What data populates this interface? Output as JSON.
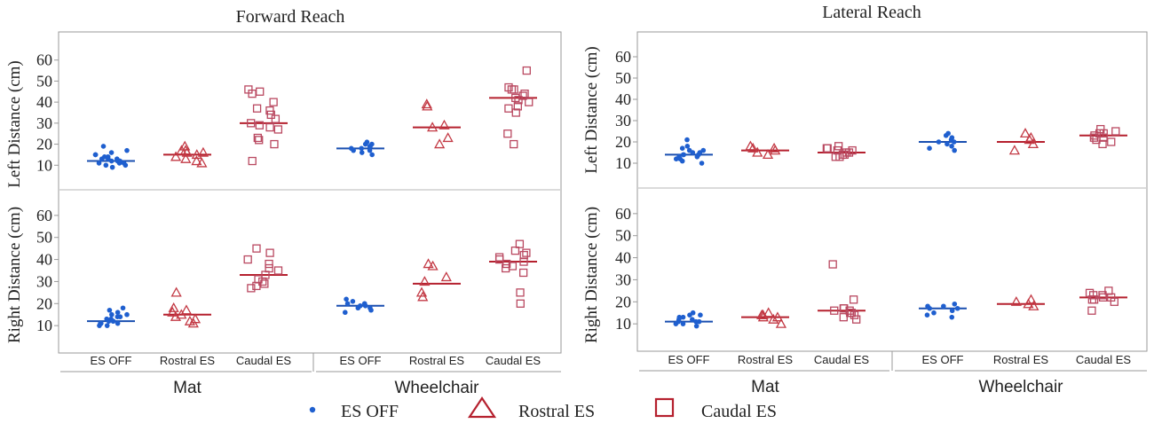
{
  "legend": {
    "items": [
      {
        "label": "ES OFF",
        "marker": "dot",
        "color": "#1f5fcf"
      },
      {
        "label": "Rostral ES",
        "marker": "triangle",
        "color": "#b5202e"
      },
      {
        "label": "Caudal ES",
        "marker": "square",
        "color": "#b5202e"
      }
    ]
  },
  "colors": {
    "es_off": "#1f5fcf",
    "rostral": "#c33a45",
    "caudal": "#b94860",
    "axis": "#9a9a9a",
    "text": "#222222"
  },
  "chart_data": [
    {
      "type": "scatter",
      "title": "Forward Reach",
      "groups": [
        "Mat",
        "Wheelchair"
      ],
      "conditions": [
        "ES OFF",
        "Rostral ES",
        "Caudal ES"
      ],
      "condition_markers": [
        "dot",
        "triangle",
        "square"
      ],
      "ylim": [
        0,
        70
      ],
      "yticks": [
        10,
        20,
        30,
        40,
        50,
        60
      ],
      "panels": [
        {
          "ylabel": "Left Distance (cm)",
          "series": [
            {
              "group": "Mat",
              "condition": "ES OFF",
              "mean": 12,
              "values": [
                9,
                10,
                10,
                11,
                11,
                11,
                12,
                12,
                12,
                12,
                13,
                13,
                13,
                14,
                14,
                15,
                15,
                16,
                17,
                19
              ]
            },
            {
              "group": "Mat",
              "condition": "Rostral ES",
              "mean": 15,
              "values": [
                11,
                12,
                13,
                14,
                15,
                16,
                16,
                17,
                17,
                19
              ]
            },
            {
              "group": "Mat",
              "condition": "Caudal ES",
              "mean": 30,
              "values": [
                12,
                20,
                22,
                23,
                27,
                28,
                29,
                30,
                32,
                34,
                36,
                37,
                40,
                44,
                45,
                46
              ]
            },
            {
              "group": "Wheelchair",
              "condition": "ES OFF",
              "mean": 18,
              "values": [
                15,
                16,
                17,
                17,
                18,
                18,
                19,
                19,
                20,
                20,
                21
              ]
            },
            {
              "group": "Wheelchair",
              "condition": "Rostral ES",
              "mean": 28,
              "values": [
                20,
                23,
                28,
                29,
                38,
                39
              ]
            },
            {
              "group": "Wheelchair",
              "condition": "Caudal ES",
              "mean": 42,
              "values": [
                20,
                25,
                35,
                37,
                38,
                40,
                41,
                42,
                43,
                44,
                46,
                46,
                47,
                55
              ]
            }
          ]
        },
        {
          "ylabel": "Right Distance (cm)",
          "series": [
            {
              "group": "Mat",
              "condition": "ES OFF",
              "mean": 12,
              "values": [
                10,
                10,
                11,
                11,
                11,
                12,
                12,
                12,
                13,
                13,
                14,
                14,
                15,
                15,
                16,
                17,
                18
              ]
            },
            {
              "group": "Mat",
              "condition": "Rostral ES",
              "mean": 15,
              "values": [
                11,
                12,
                13,
                14,
                15,
                16,
                17,
                18,
                25
              ]
            },
            {
              "group": "Mat",
              "condition": "Caudal ES",
              "mean": 33,
              "values": [
                27,
                28,
                29,
                30,
                31,
                33,
                35,
                36,
                38,
                40,
                43,
                45
              ]
            },
            {
              "group": "Wheelchair",
              "condition": "ES OFF",
              "mean": 19,
              "values": [
                16,
                17,
                18,
                18,
                19,
                19,
                20,
                20,
                21,
                22
              ]
            },
            {
              "group": "Wheelchair",
              "condition": "Rostral ES",
              "mean": 29,
              "values": [
                23,
                25,
                30,
                32,
                37,
                38
              ]
            },
            {
              "group": "Wheelchair",
              "condition": "Caudal ES",
              "mean": 39,
              "values": [
                20,
                25,
                34,
                36,
                37,
                38,
                39,
                40,
                41,
                42,
                43,
                44,
                47
              ]
            }
          ]
        }
      ]
    },
    {
      "type": "scatter",
      "title": "Lateral Reach",
      "groups": [
        "Mat",
        "Wheelchair"
      ],
      "conditions": [
        "ES OFF",
        "Rostral ES",
        "Caudal ES"
      ],
      "condition_markers": [
        "dot",
        "triangle",
        "square"
      ],
      "ylim": [
        0,
        70
      ],
      "yticks": [
        10,
        20,
        30,
        40,
        50,
        60
      ],
      "panels": [
        {
          "ylabel": "Left Distance (cm)",
          "series": [
            {
              "group": "Mat",
              "condition": "ES OFF",
              "mean": 14,
              "values": [
                10,
                11,
                12,
                12,
                13,
                13,
                14,
                14,
                14,
                15,
                15,
                16,
                16,
                17,
                18,
                21
              ]
            },
            {
              "group": "Mat",
              "condition": "Rostral ES",
              "mean": 16,
              "values": [
                14,
                15,
                16,
                17,
                17,
                18
              ]
            },
            {
              "group": "Mat",
              "condition": "Caudal ES",
              "mean": 15,
              "values": [
                13,
                13,
                14,
                14,
                15,
                15,
                16,
                16,
                17,
                17,
                18
              ]
            },
            {
              "group": "Wheelchair",
              "condition": "ES OFF",
              "mean": 20,
              "values": [
                16,
                17,
                18,
                19,
                20,
                20,
                21,
                22,
                23,
                24
              ]
            },
            {
              "group": "Wheelchair",
              "condition": "Rostral ES",
              "mean": 20,
              "values": [
                16,
                19,
                21,
                22,
                24
              ]
            },
            {
              "group": "Wheelchair",
              "condition": "Caudal ES",
              "mean": 23,
              "values": [
                19,
                20,
                21,
                22,
                22,
                23,
                24,
                24,
                25,
                26
              ]
            }
          ]
        },
        {
          "ylabel": "Right Distance (cm)",
          "series": [
            {
              "group": "Mat",
              "condition": "ES OFF",
              "mean": 11,
              "values": [
                9,
                10,
                10,
                11,
                11,
                11,
                12,
                12,
                13,
                13,
                14,
                14,
                15
              ]
            },
            {
              "group": "Mat",
              "condition": "Rostral ES",
              "mean": 13,
              "values": [
                10,
                12,
                13,
                13,
                14,
                14,
                15
              ]
            },
            {
              "group": "Mat",
              "condition": "Caudal ES",
              "mean": 16,
              "values": [
                12,
                13,
                14,
                15,
                15,
                16,
                16,
                17,
                17,
                21,
                37
              ]
            },
            {
              "group": "Wheelchair",
              "condition": "ES OFF",
              "mean": 17,
              "values": [
                13,
                14,
                15,
                16,
                17,
                17,
                18,
                18,
                19
              ]
            },
            {
              "group": "Wheelchair",
              "condition": "Rostral ES",
              "mean": 19,
              "values": [
                18,
                19,
                20,
                21
              ]
            },
            {
              "group": "Wheelchair",
              "condition": "Caudal ES",
              "mean": 22,
              "values": [
                16,
                20,
                21,
                21,
                22,
                22,
                23,
                23,
                24,
                25
              ]
            }
          ]
        }
      ]
    }
  ]
}
